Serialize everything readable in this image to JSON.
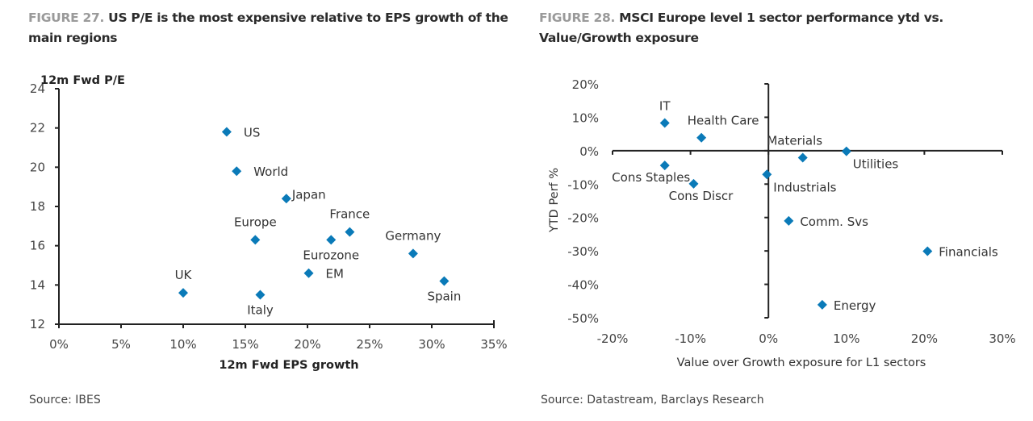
{
  "colors": {
    "marker": "#0a7ab8",
    "axis": "#222222",
    "figure_prefix": "#9a9a9a"
  },
  "charts": [
    {
      "figure_label": "FIGURE 27.",
      "title": "US P/E is the most expensive relative to EPS growth of the main regions",
      "source": "Source: IBES"
    },
    {
      "figure_label": "FIGURE 28.",
      "title": "MSCI Europe level 1 sector performance ytd vs. Value/Growth exposure",
      "source": "Source: Datastream, Barclays Research"
    }
  ],
  "chart_data": [
    {
      "type": "scatter",
      "title": "US P/E is the most expensive relative to EPS growth of the main regions",
      "xlabel": "12m Fwd EPS growth",
      "ylabel": "12m Fwd P/E",
      "xlim": [
        0,
        35
      ],
      "ylim": [
        12,
        24
      ],
      "x_ticks": [
        "0%",
        "5%",
        "10%",
        "15%",
        "20%",
        "25%",
        "30%",
        "35%"
      ],
      "y_ticks": [
        "12",
        "14",
        "16",
        "18",
        "20",
        "22",
        "24"
      ],
      "x_tick_values": [
        0,
        5,
        10,
        15,
        20,
        25,
        30,
        35
      ],
      "y_tick_values": [
        12,
        14,
        16,
        18,
        20,
        22,
        24
      ],
      "grid": false,
      "points": [
        {
          "label": "US",
          "x": 13.5,
          "y": 21.8,
          "label_pos": "right"
        },
        {
          "label": "World",
          "x": 14.3,
          "y": 19.8,
          "label_pos": "right"
        },
        {
          "label": "Japan",
          "x": 18.3,
          "y": 18.4,
          "label_pos": "right-tight"
        },
        {
          "label": "France",
          "x": 23.4,
          "y": 16.7,
          "label_pos": "above"
        },
        {
          "label": "Europe",
          "x": 15.8,
          "y": 16.3,
          "label_pos": "above"
        },
        {
          "label": "Eurozone",
          "x": 21.9,
          "y": 16.3,
          "label_pos": "below"
        },
        {
          "label": "Germany",
          "x": 28.5,
          "y": 15.6,
          "label_pos": "above"
        },
        {
          "label": "EM",
          "x": 20.1,
          "y": 14.6,
          "label_pos": "right"
        },
        {
          "label": "Spain",
          "x": 31.0,
          "y": 14.2,
          "label_pos": "below"
        },
        {
          "label": "UK",
          "x": 10.0,
          "y": 13.6,
          "label_pos": "above"
        },
        {
          "label": "Italy",
          "x": 16.2,
          "y": 13.5,
          "label_pos": "below"
        }
      ]
    },
    {
      "type": "scatter",
      "title": "MSCI Europe level 1 sector performance ytd vs. Value/Growth exposure",
      "xlabel": "Value over Growth exposure for L1 sectors",
      "ylabel": "YTD Perf %",
      "xlim": [
        -20,
        30
      ],
      "ylim": [
        -50,
        20
      ],
      "x_ticks": [
        "-20%",
        "-10%",
        "0%",
        "10%",
        "20%",
        "30%"
      ],
      "y_ticks": [
        "20%",
        "10%",
        "0%",
        "-10%",
        "-20%",
        "-30%",
        "-40%",
        "-50%"
      ],
      "x_tick_values": [
        -20,
        -10,
        0,
        10,
        20,
        30
      ],
      "y_tick_values": [
        20,
        10,
        0,
        -10,
        -20,
        -30,
        -40,
        -50
      ],
      "grid": false,
      "points": [
        {
          "label": "IT",
          "x": -13.3,
          "y": 8.3,
          "label_pos": "above"
        },
        {
          "label": "Health Care",
          "x": -8.6,
          "y": 3.9,
          "label_pos": "above"
        },
        {
          "label": "Materials",
          "x": 4.4,
          "y": -2.1,
          "label_pos": "above"
        },
        {
          "label": "Utilities",
          "x": 10.0,
          "y": -0.2,
          "label_pos": "below-right"
        },
        {
          "label": "Cons Staples",
          "x": -13.3,
          "y": -4.4,
          "label_pos": "below"
        },
        {
          "label": "Industrials",
          "x": -0.2,
          "y": -7.1,
          "label_pos": "below-right"
        },
        {
          "label": "Cons Discr",
          "x": -9.6,
          "y": -9.9,
          "label_pos": "below"
        },
        {
          "label": "Comm. Svs",
          "x": 2.6,
          "y": -21.0,
          "label_pos": "right"
        },
        {
          "label": "Financials",
          "x": 20.4,
          "y": -30.1,
          "label_pos": "right"
        },
        {
          "label": "Energy",
          "x": 6.9,
          "y": -46.1,
          "label_pos": "right"
        }
      ]
    }
  ]
}
